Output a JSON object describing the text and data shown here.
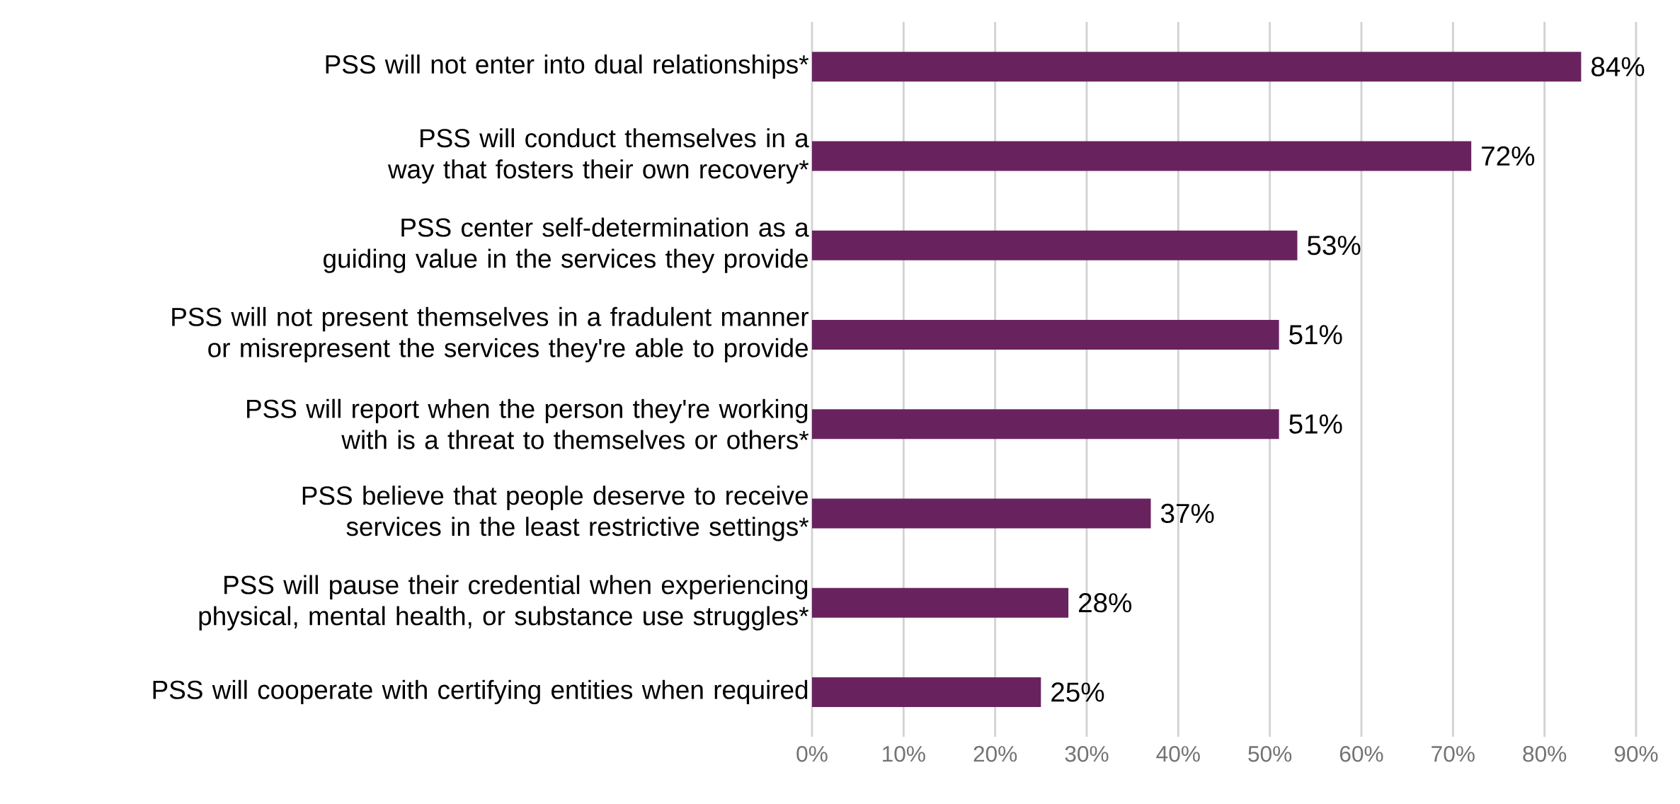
{
  "chart_data": {
    "type": "bar",
    "orientation": "horizontal",
    "categories": [
      "PSS will not enter into dual relationships*",
      "PSS will conduct themselves in a way that fosters their own recovery*",
      "PSS center self-determination as a guiding value in the services they provide",
      "PSS will not present themselves in a fradulent manner or misrepresent the services they're able to provide",
      "PSS will report when the person they're working with is a threat to themselves or others*",
      "PSS believe that people deserve to receive services in the least restrictive settings*",
      "PSS will pause their credential when experiencing physical, mental health, or substance use struggles*",
      "PSS will cooperate with certifying entities when required"
    ],
    "values": [
      84,
      72,
      53,
      51,
      51,
      37,
      28,
      25
    ],
    "value_labels": [
      "84%",
      "72%",
      "53%",
      "51%",
      "51%",
      "37%",
      "28%",
      "25%"
    ],
    "color": "#68235e",
    "xlim": [
      0,
      90
    ],
    "xticks": [
      {
        "value": 0,
        "label": "0%"
      },
      {
        "value": 10,
        "label": "10%"
      },
      {
        "value": 20,
        "label": "20%"
      },
      {
        "value": 30,
        "label": "30%"
      },
      {
        "value": 40,
        "label": "40%"
      },
      {
        "value": 50,
        "label": "50%"
      },
      {
        "value": 60,
        "label": "60%"
      },
      {
        "value": 70,
        "label": "70%"
      },
      {
        "value": 80,
        "label": "80%"
      },
      {
        "value": 90,
        "label": "90%"
      }
    ],
    "grid": "x"
  }
}
